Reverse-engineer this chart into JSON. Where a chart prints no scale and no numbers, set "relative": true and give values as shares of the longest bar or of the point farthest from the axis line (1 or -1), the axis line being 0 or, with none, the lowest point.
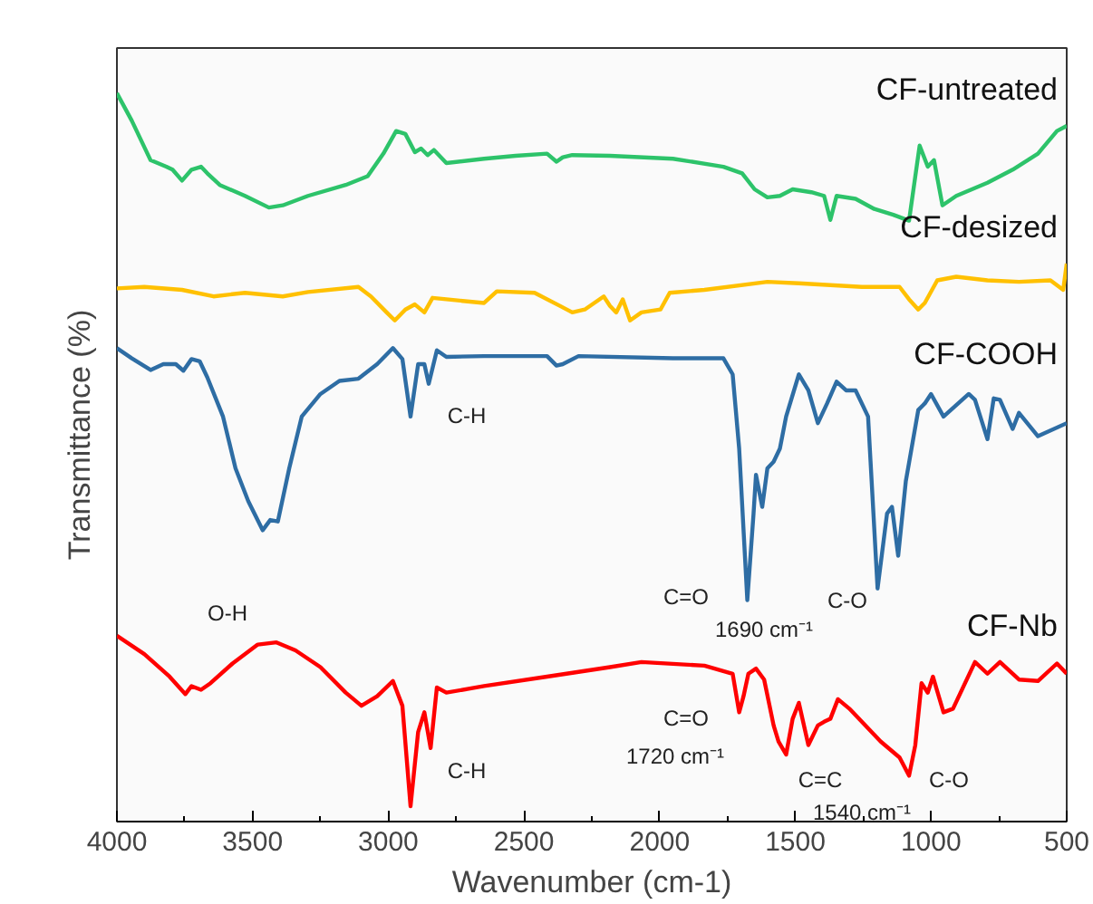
{
  "chart_data": {
    "type": "line",
    "relative": true,
    "xlabel": "Wavenumber (cm-1)",
    "ylabel": "Transmittance (%)",
    "xlim": [
      4000,
      500
    ],
    "xticks": [
      4000,
      3500,
      3000,
      2500,
      2000,
      1500,
      1000,
      500
    ],
    "series": [
      {
        "name": "CF-untreated",
        "color": "#2dc36a",
        "x": [
          4000,
          3945,
          3876,
          3818,
          3795,
          3760,
          3725,
          3690,
          3667,
          3621,
          3528,
          3440,
          3389,
          3296,
          3157,
          3076,
          3018,
          2971,
          2937,
          2902,
          2879,
          2855,
          2832,
          2786,
          2647,
          2531,
          2415,
          2380,
          2357,
          2322,
          2183,
          1951,
          1765,
          1696,
          1650,
          1603,
          1557,
          1510,
          1441,
          1394,
          1371,
          1348,
          1278,
          1209,
          1139,
          1081,
          1042,
          1012,
          989,
          958,
          907,
          792,
          699,
          606,
          536,
          500
        ],
        "values": [
          1.0,
          0.962,
          0.908,
          0.899,
          0.895,
          0.88,
          0.895,
          0.899,
          0.89,
          0.874,
          0.859,
          0.843,
          0.846,
          0.859,
          0.874,
          0.886,
          0.917,
          0.948,
          0.944,
          0.919,
          0.924,
          0.915,
          0.922,
          0.904,
          0.91,
          0.914,
          0.917,
          0.906,
          0.912,
          0.915,
          0.914,
          0.91,
          0.899,
          0.89,
          0.868,
          0.857,
          0.859,
          0.868,
          0.864,
          0.859,
          0.826,
          0.859,
          0.855,
          0.841,
          0.833,
          0.825,
          0.928,
          0.899,
          0.908,
          0.846,
          0.859,
          0.877,
          0.895,
          0.917,
          0.948,
          0.955
        ]
      },
      {
        "name": "CF-desized",
        "color": "#ffc000",
        "x": [
          4000,
          3899,
          3760,
          3644,
          3528,
          3389,
          3296,
          3110,
          3064,
          3006,
          2976,
          2937,
          2902,
          2867,
          2837,
          2786,
          2647,
          2600,
          2461,
          2368,
          2322,
          2276,
          2206,
          2183,
          2160,
          2136,
          2109,
          2067,
          1997,
          1963,
          1835,
          1603,
          1487,
          1255,
          1116,
          1081,
          1047,
          1023,
          977,
          907,
          792,
          676,
          560,
          513,
          500
        ],
        "values": [
          0.732,
          0.734,
          0.73,
          0.721,
          0.726,
          0.721,
          0.727,
          0.734,
          0.721,
          0.699,
          0.688,
          0.703,
          0.71,
          0.699,
          0.719,
          0.717,
          0.712,
          0.728,
          0.726,
          0.708,
          0.699,
          0.703,
          0.721,
          0.708,
          0.699,
          0.717,
          0.688,
          0.699,
          0.703,
          0.726,
          0.73,
          0.741,
          0.739,
          0.734,
          0.734,
          0.717,
          0.703,
          0.712,
          0.743,
          0.748,
          0.743,
          0.741,
          0.743,
          0.73,
          0.766
        ]
      },
      {
        "name": "CF-COOH",
        "color": "#2e6da4",
        "x": [
          4000,
          3945,
          3876,
          3829,
          3783,
          3755,
          3725,
          3695,
          3667,
          3609,
          3563,
          3516,
          3463,
          3435,
          3407,
          3365,
          3319,
          3250,
          3180,
          3110,
          3041,
          2983,
          2948,
          2918,
          2890,
          2867,
          2851,
          2821,
          2786,
          2647,
          2415,
          2380,
          2357,
          2299,
          1951,
          1765,
          1731,
          1707,
          1677,
          1654,
          1645,
          1622,
          1603,
          1580,
          1557,
          1534,
          1487,
          1452,
          1417,
          1383,
          1348,
          1313,
          1278,
          1232,
          1197,
          1162,
          1144,
          1121,
          1093,
          1047,
          1023,
          1000,
          954,
          861,
          838,
          792,
          769,
          746,
          699,
          676,
          606,
          500
        ],
        "values": [
          0.65,
          0.636,
          0.62,
          0.628,
          0.628,
          0.619,
          0.635,
          0.632,
          0.61,
          0.556,
          0.485,
          0.44,
          0.4,
          0.414,
          0.412,
          0.485,
          0.556,
          0.587,
          0.605,
          0.608,
          0.628,
          0.65,
          0.635,
          0.556,
          0.628,
          0.628,
          0.601,
          0.647,
          0.638,
          0.639,
          0.639,
          0.626,
          0.628,
          0.639,
          0.636,
          0.636,
          0.614,
          0.512,
          0.304,
          0.423,
          0.476,
          0.432,
          0.485,
          0.494,
          0.512,
          0.556,
          0.614,
          0.592,
          0.547,
          0.574,
          0.604,
          0.592,
          0.592,
          0.556,
          0.32,
          0.423,
          0.432,
          0.365,
          0.467,
          0.565,
          0.574,
          0.587,
          0.556,
          0.587,
          0.579,
          0.525,
          0.581,
          0.579,
          0.539,
          0.561,
          0.529,
          0.547
        ]
      },
      {
        "name": "CF-Nb",
        "color": "#ff0000",
        "x": [
          4000,
          3899,
          3806,
          3748,
          3725,
          3690,
          3655,
          3574,
          3481,
          3412,
          3342,
          3250,
          3157,
          3099,
          3041,
          2983,
          2948,
          2918,
          2890,
          2867,
          2844,
          2821,
          2786,
          2647,
          2415,
          2183,
          2067,
          1835,
          1731,
          1707,
          1691,
          1673,
          1645,
          1615,
          1580,
          1562,
          1534,
          1510,
          1487,
          1452,
          1417,
          1394,
          1371,
          1343,
          1301,
          1255,
          1186,
          1116,
          1081,
          1058,
          1035,
          1012,
          993,
          954,
          919,
          838,
          792,
          746,
          676,
          606,
          536,
          500
        ],
        "values": [
          0.255,
          0.23,
          0.199,
          0.175,
          0.186,
          0.181,
          0.19,
          0.217,
          0.243,
          0.246,
          0.235,
          0.212,
          0.177,
          0.159,
          0.172,
          0.193,
          0.159,
          0.021,
          0.123,
          0.15,
          0.101,
          0.184,
          0.177,
          0.186,
          0.199,
          0.212,
          0.219,
          0.214,
          0.203,
          0.15,
          0.172,
          0.203,
          0.21,
          0.195,
          0.132,
          0.11,
          0.092,
          0.141,
          0.163,
          0.105,
          0.132,
          0.137,
          0.141,
          0.168,
          0.155,
          0.137,
          0.11,
          0.088,
          0.063,
          0.105,
          0.19,
          0.177,
          0.199,
          0.15,
          0.155,
          0.219,
          0.203,
          0.219,
          0.195,
          0.193,
          0.217,
          0.203
        ]
      }
    ],
    "annotations": [
      "O-H",
      "C-H",
      "C=O",
      "1690 cm⁻¹",
      "C-O",
      "C-H",
      "C=O",
      "1720 cm⁻¹",
      "C=C",
      "1540 cm⁻¹",
      "C-O"
    ]
  }
}
